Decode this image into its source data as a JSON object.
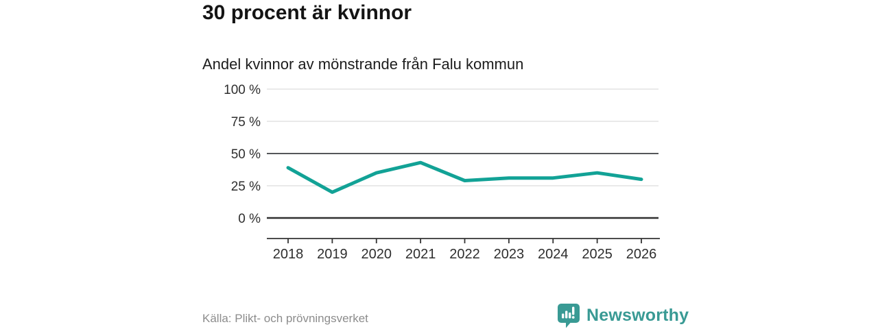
{
  "chart_data": {
    "type": "line",
    "title": "30 procent är kvinnor",
    "subtitle": "Andel kvinnor av mönstrande från Falu kommun",
    "categories": [
      "2018",
      "2019",
      "2020",
      "2021",
      "2022",
      "2023",
      "2024",
      "2025",
      "2026"
    ],
    "series": [
      {
        "name": "Andel kvinnor av mönstrande",
        "values": [
          39,
          20,
          35,
          43,
          29,
          31,
          31,
          35,
          30
        ]
      }
    ],
    "unit": "%",
    "xlabel": "",
    "ylabel": "",
    "ylim": [
      0,
      100
    ],
    "yticks": [
      0,
      25,
      50,
      75,
      100
    ],
    "ytick_suffix": " %",
    "grid": true,
    "emphasized_gridlines": [
      0,
      50
    ],
    "legend_position": "none",
    "line_color": "#12a296"
  },
  "footer": {
    "source": "Källa: Plikt- och prövningsverket",
    "brand": "Newsworthy"
  },
  "colors": {
    "accent": "#12a296",
    "brand_teal": "#399a94",
    "grid_light": "#dcdcdc",
    "grid_mid": "#55575a",
    "grid_zero": "#303030",
    "axis": "#333333",
    "tick_label": "#2e2e2e",
    "text_dark": "#141414",
    "text_muted": "#8c8c8c"
  }
}
